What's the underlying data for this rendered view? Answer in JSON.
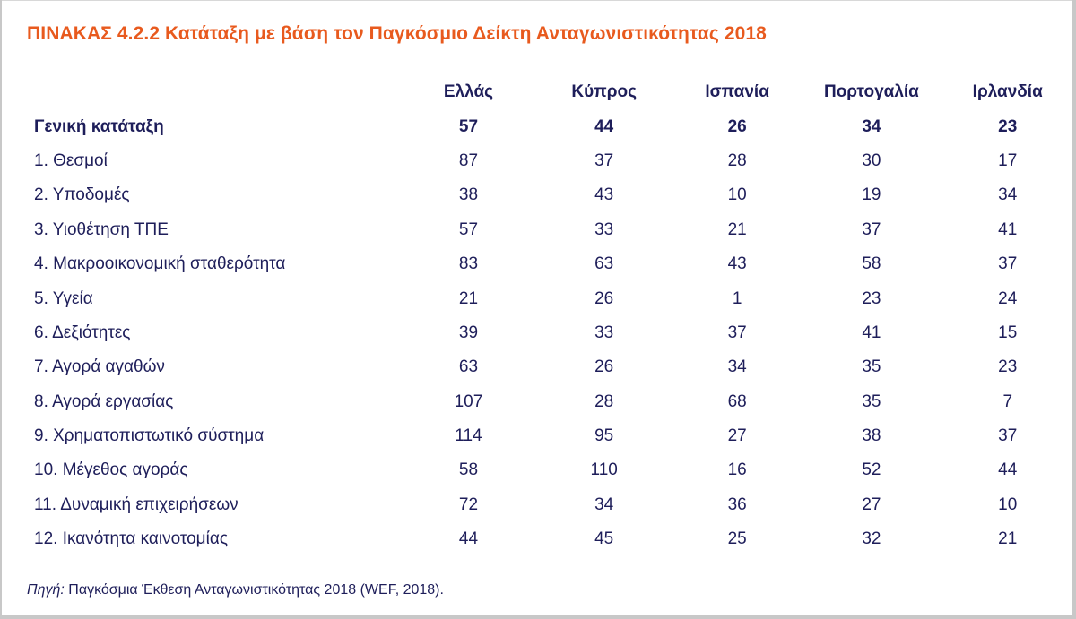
{
  "title": "ΠΙΝΑΚΑΣ 4.2.2  Κατάταξη με βάση τον Παγκόσμιο Δείκτη Ανταγωνιστικότητας 2018",
  "columns": [
    "Ελλάς",
    "Κύπρος",
    "Ισπανία",
    "Πορτογαλία",
    "Ιρλανδία"
  ],
  "rows": [
    {
      "label": "Γενική κατάταξη",
      "values": [
        "57",
        "44",
        "26",
        "34",
        "23"
      ]
    },
    {
      "label": "1. Θεσμοί",
      "values": [
        "87",
        "37",
        "28",
        "30",
        "17"
      ]
    },
    {
      "label": "2. Υποδομές",
      "values": [
        "38",
        "43",
        "10",
        "19",
        "34"
      ]
    },
    {
      "label": "3. Υιοθέτηση ΤΠΕ",
      "values": [
        "57",
        "33",
        "21",
        "37",
        "41"
      ]
    },
    {
      "label": "4. Μακροοικονομική σταθερότητα",
      "values": [
        "83",
        "63",
        "43",
        "58",
        "37"
      ]
    },
    {
      "label": "5. Υγεία",
      "values": [
        "21",
        "26",
        "1",
        "23",
        "24"
      ]
    },
    {
      "label": "6. Δεξιότητες",
      "values": [
        "39",
        "33",
        "37",
        "41",
        "15"
      ]
    },
    {
      "label": "7. Αγορά αγαθών",
      "values": [
        "63",
        "26",
        "34",
        "35",
        "23"
      ]
    },
    {
      "label": "8. Αγορά εργασίας",
      "values": [
        "107",
        "28",
        "68",
        "35",
        "7"
      ]
    },
    {
      "label": "9. Χρηματοπιστωτικό σύστημα",
      "values": [
        "114",
        "95",
        "27",
        "38",
        "37"
      ]
    },
    {
      "label": "10. Μέγεθος αγοράς",
      "values": [
        "58",
        "110",
        "16",
        "52",
        "44"
      ]
    },
    {
      "label": "11. Δυναμική επιχειρήσεων",
      "values": [
        "72",
        "34",
        "36",
        "27",
        "10"
      ]
    },
    {
      "label": "12. Ικανότητα καινοτομίας",
      "values": [
        "44",
        "45",
        "25",
        "32",
        "21"
      ]
    }
  ],
  "footnote": {
    "source_label": "Πηγή:",
    "text": " Παγκόσμια Έκθεση Ανταγωνιστικότητας 2018 (WEF, 2018)."
  },
  "colors": {
    "title": "#e85a1e",
    "text": "#1e1e5a",
    "frame": "#c8c8c8"
  }
}
